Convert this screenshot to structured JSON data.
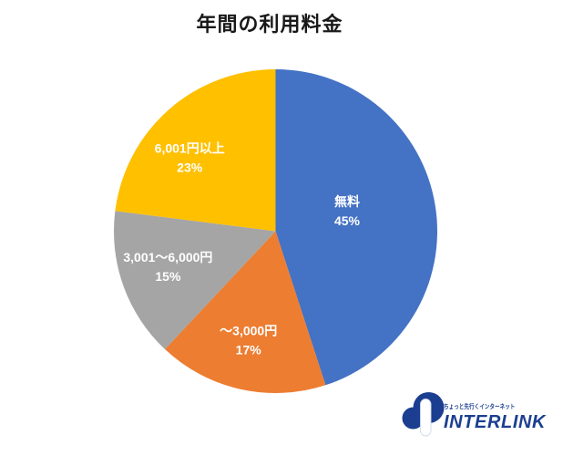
{
  "page": {
    "background": "#ffffff"
  },
  "chart_data": {
    "type": "pie",
    "title": "年間の利用料金",
    "direction": "clockwise",
    "start_angle_deg": 0,
    "legend": "none",
    "labels_inside": true,
    "label_text_color": "#ffffff",
    "slices": [
      {
        "label": "無料",
        "value": 45,
        "percent_label": "45%",
        "color": "#4472C4"
      },
      {
        "label": "～3,000円",
        "value": 17,
        "percent_label": "17%",
        "color": "#ED7D31"
      },
      {
        "label": "3,001～6,000円",
        "value": 15,
        "percent_label": "15%",
        "color": "#A5A5A5"
      },
      {
        "label": "6,001円以上",
        "value": 23,
        "percent_label": "23%",
        "color": "#FFC000"
      }
    ]
  },
  "footer_logo": {
    "tagline": "ちょっと先行くインターネット",
    "brand": "INTERLINK",
    "brand_color": "#1B3E90"
  }
}
